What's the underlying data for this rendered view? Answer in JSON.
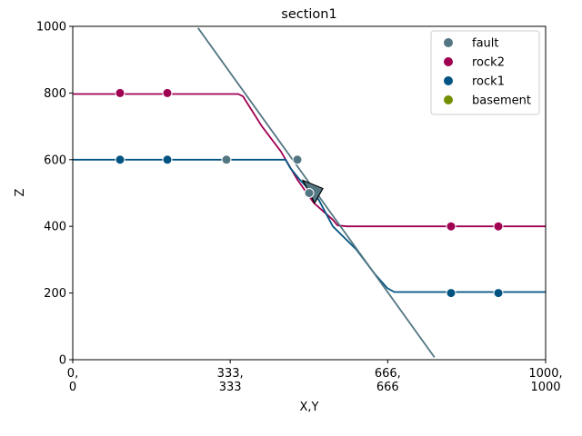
{
  "chart_data": {
    "type": "line",
    "title": "section1",
    "xlabel": "X,Y",
    "ylabel": "Z",
    "xlim": [
      0,
      1000
    ],
    "ylim": [
      0,
      1000
    ],
    "x_ticks": [
      {
        "value": 0,
        "label_lines": [
          "0,",
          "0"
        ]
      },
      {
        "value": 333,
        "label_lines": [
          "333,",
          "333"
        ]
      },
      {
        "value": 666,
        "label_lines": [
          "666,",
          "666"
        ]
      },
      {
        "value": 1000,
        "label_lines": [
          "1000,",
          "1000"
        ]
      }
    ],
    "y_ticks": [
      0,
      200,
      400,
      600,
      800,
      1000
    ],
    "grid": false,
    "legend_placement": "top-right",
    "legend": [
      {
        "name": "fault",
        "color": "#527682"
      },
      {
        "name": "rock2",
        "color": "#9f0052"
      },
      {
        "name": "rock1",
        "color": "#015482"
      },
      {
        "name": "basement",
        "color": "#728f02"
      }
    ],
    "lines": [
      {
        "series": "rock2",
        "color": "#9f0052",
        "points": [
          [
            0,
            797
          ],
          [
            350,
            797
          ],
          [
            360,
            790
          ],
          [
            400,
            700
          ],
          [
            440,
            625
          ],
          [
            475,
            540
          ],
          [
            510,
            470
          ],
          [
            550,
            420
          ],
          [
            560,
            403
          ],
          [
            580,
            400
          ],
          [
            1000,
            400
          ]
        ]
      },
      {
        "series": "rock1",
        "color": "#015482",
        "points": [
          [
            0,
            600
          ],
          [
            450,
            600
          ],
          [
            460,
            575
          ],
          [
            480,
            540
          ],
          [
            520,
            480
          ],
          [
            550,
            400
          ],
          [
            600,
            330
          ],
          [
            640,
            255
          ],
          [
            665,
            215
          ],
          [
            680,
            203
          ],
          [
            1000,
            203
          ]
        ]
      },
      {
        "series": "fault",
        "color": "#527682",
        "points": [
          [
            265,
            995
          ],
          [
            765,
            7
          ]
        ]
      }
    ],
    "points": [
      {
        "series": "rock2",
        "x": 100,
        "y": 800
      },
      {
        "series": "rock2",
        "x": 200,
        "y": 800
      },
      {
        "series": "rock2",
        "x": 800,
        "y": 400
      },
      {
        "series": "rock2",
        "x": 900,
        "y": 400
      },
      {
        "series": "rock1",
        "x": 100,
        "y": 600
      },
      {
        "series": "rock1",
        "x": 200,
        "y": 600
      },
      {
        "series": "rock1",
        "x": 800,
        "y": 200
      },
      {
        "series": "rock1",
        "x": 900,
        "y": 200
      },
      {
        "series": "fault",
        "x": 325,
        "y": 600
      },
      {
        "series": "fault",
        "x": 475,
        "y": 600
      },
      {
        "series": "fault",
        "x": 500,
        "y": 500
      }
    ],
    "orientation_arrow": {
      "series": "fault",
      "color": "#527682",
      "x": 500,
      "y": 500
    }
  }
}
